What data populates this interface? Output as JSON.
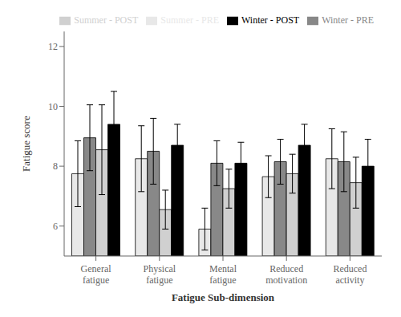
{
  "chart_data": {
    "type": "bar",
    "categories": [
      "General\nfatigue",
      "Physical\nfatigue",
      "Mental\nfatigue",
      "Reduced\nmotivation",
      "Reduced\nactivity"
    ],
    "series": [
      {
        "name": "Summer - PRE",
        "color": "#e8e8e8",
        "values": [
          7.75,
          8.25,
          5.9,
          7.65,
          8.25
        ],
        "errors": [
          1.1,
          1.1,
          0.7,
          0.7,
          1.0
        ]
      },
      {
        "name": "Winter - PRE",
        "color": "#888888",
        "values": [
          8.95,
          8.5,
          8.1,
          8.15,
          8.15
        ],
        "errors": [
          1.1,
          1.1,
          0.75,
          0.75,
          1.0
        ]
      },
      {
        "name": "Summer - POST",
        "color": "#d0d0d0",
        "values": [
          8.55,
          6.55,
          7.25,
          7.75,
          7.45
        ],
        "errors": [
          1.5,
          0.65,
          0.65,
          0.65,
          0.85
        ]
      },
      {
        "name": "Winter - POST",
        "color": "#000000",
        "values": [
          9.4,
          8.7,
          8.1,
          8.7,
          8.0
        ],
        "errors": [
          1.1,
          0.7,
          0.7,
          0.7,
          0.9
        ]
      }
    ],
    "xlabel": "Fatigue Sub-dimension",
    "ylabel": "Fatigue score",
    "ylim": [
      5.0,
      12.5
    ],
    "yticks": [
      6,
      8,
      10,
      12
    ],
    "grid": false,
    "legend": "upper right"
  }
}
